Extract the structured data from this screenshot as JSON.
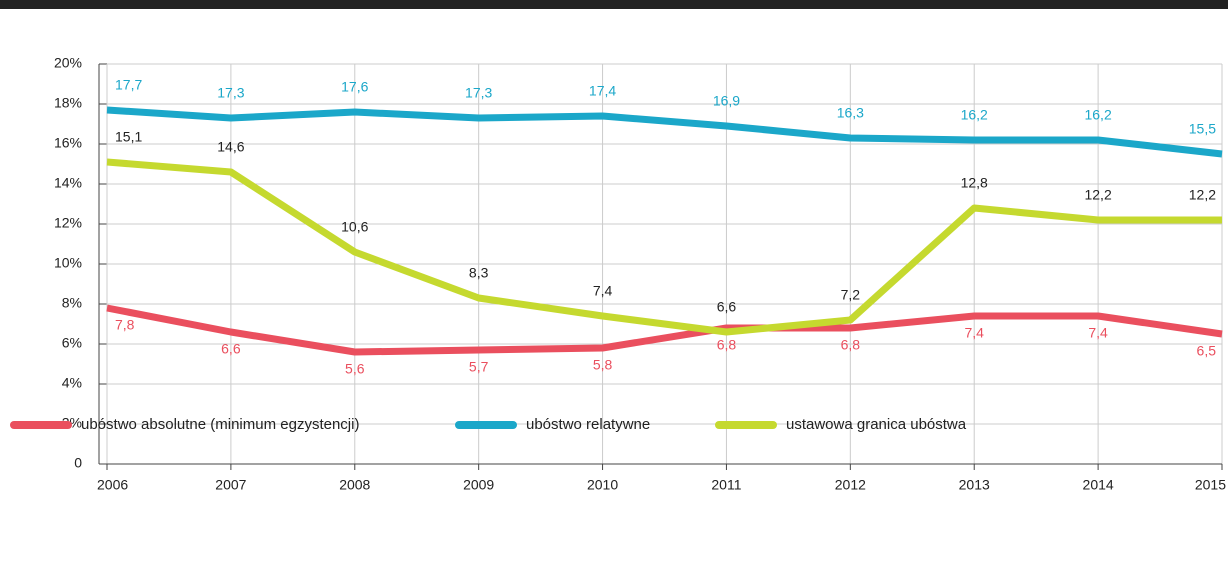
{
  "chart_data": {
    "type": "line",
    "x": [
      2006,
      2007,
      2008,
      2009,
      2010,
      2011,
      2012,
      2013,
      2014,
      2015
    ],
    "xlim": [
      2006,
      2015
    ],
    "xticks": [
      2006,
      2007,
      2008,
      2009,
      2010,
      2011,
      2012,
      2013,
      2014,
      2015
    ],
    "ylim": [
      0,
      20
    ],
    "yticks": [
      0,
      {
        "value": 2,
        "label": "2%"
      },
      {
        "value": 4,
        "label": "4%"
      },
      {
        "value": 6,
        "label": "6%"
      },
      {
        "value": 8,
        "label": "8%"
      },
      {
        "value": 10,
        "label": "10%"
      },
      {
        "value": 12,
        "label": "12%"
      },
      {
        "value": 14,
        "label": "14%"
      },
      {
        "value": 16,
        "label": "16%"
      },
      {
        "value": 18,
        "label": "18%"
      },
      {
        "value": 20,
        "label": "20%"
      }
    ],
    "grid": true,
    "legend": "bottom",
    "series": [
      {
        "name": "ubóstwo absolutne (minimum egzystencji)",
        "color": "#ea4f5e",
        "label_color": "#ea4f5e",
        "label_position": "below",
        "values": [
          7.8,
          6.6,
          5.6,
          5.7,
          5.8,
          6.8,
          6.8,
          7.4,
          7.4,
          6.5
        ],
        "value_labels": [
          "7,8",
          "6,6",
          "5,6",
          "5,7",
          "5,8",
          "6,8",
          "6,8",
          "7,4",
          "7,4",
          "6,5"
        ]
      },
      {
        "name": "ubóstwo relatywne",
        "color": "#1ba7c9",
        "label_color": "#1ba7c9",
        "label_position": "above",
        "values": [
          17.7,
          17.3,
          17.6,
          17.3,
          17.4,
          16.9,
          16.3,
          16.2,
          16.2,
          15.5
        ],
        "value_labels": [
          "17,7",
          "17,3",
          "17,6",
          "17,3",
          "17,4",
          "16,9",
          "16,3",
          "16,2",
          "16,2",
          "15,5"
        ]
      },
      {
        "name": "ustawowa granica ubóstwa",
        "color": "#c5d92f",
        "label_color": "#222222",
        "label_position": "above",
        "values": [
          15.1,
          14.6,
          10.6,
          8.3,
          7.4,
          6.6,
          7.2,
          12.8,
          12.2,
          12.2
        ],
        "value_labels": [
          "15,1",
          "14,6",
          "10,6",
          "8,3",
          "7,4",
          "6,6",
          "7,2",
          "12,8",
          "12,2",
          "12,2"
        ]
      }
    ]
  }
}
